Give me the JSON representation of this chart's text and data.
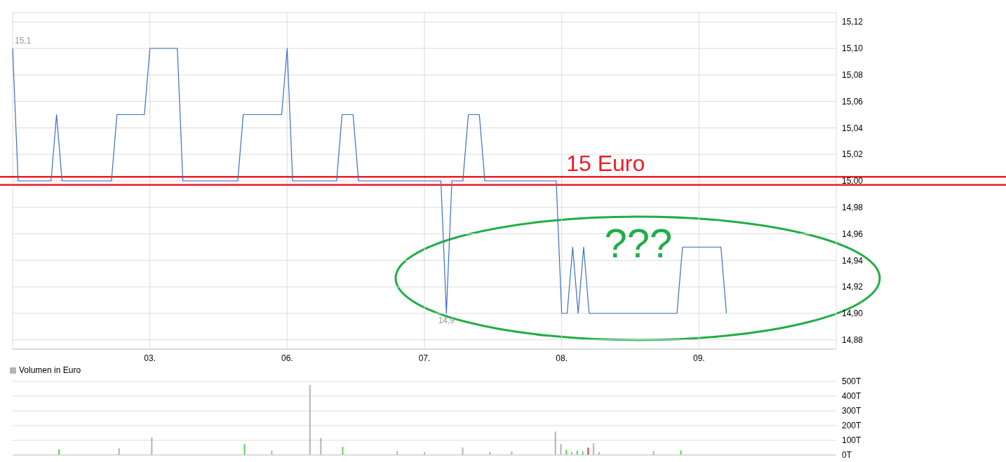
{
  "chart_data": [
    {
      "type": "line",
      "categories": [
        null,
        null,
        null,
        null,
        null,
        null,
        null,
        null,
        null,
        null,
        null,
        null,
        null,
        null,
        null,
        null,
        null,
        null,
        null,
        null,
        null,
        null,
        null,
        null,
        null,
        "03.",
        null,
        null,
        null,
        null,
        null,
        null,
        null,
        null,
        null,
        null,
        null,
        null,
        null,
        null,
        null,
        null,
        null,
        null,
        null,
        null,
        null,
        null,
        null,
        null,
        "06.",
        null,
        null,
        null,
        null,
        null,
        null,
        null,
        null,
        null,
        null,
        null,
        null,
        null,
        null,
        null,
        null,
        null,
        null,
        null,
        null,
        null,
        null,
        null,
        null,
        "07.",
        null,
        null,
        null,
        null,
        null,
        null,
        null,
        null,
        null,
        null,
        null,
        null,
        null,
        null,
        null,
        null,
        null,
        null,
        null,
        null,
        null,
        null,
        null,
        null,
        "08.",
        null,
        null,
        null,
        null,
        null,
        null,
        null,
        null,
        null,
        null,
        null,
        null,
        null,
        null,
        null,
        null,
        null,
        null,
        null,
        null,
        null,
        null,
        null,
        null,
        "09.",
        null,
        null,
        null,
        null,
        null,
        null,
        null,
        null,
        null,
        null,
        null,
        null,
        null,
        null,
        null,
        null,
        null,
        null,
        null,
        null,
        null,
        null,
        null,
        null,
        null
      ],
      "series": [
        {
          "color": "#3a6fc6",
          "values": [
            15.1,
            15,
            15,
            15,
            15,
            15,
            15,
            15,
            15.05,
            15,
            15,
            15,
            15,
            15,
            15,
            15,
            15,
            15,
            15,
            15.05,
            15.05,
            15.05,
            15.05,
            15.05,
            15.05,
            15.1,
            15.1,
            15.1,
            15.1,
            15.1,
            15.1,
            15,
            15,
            15,
            15,
            15,
            15,
            15,
            15,
            15,
            15,
            15,
            15.05,
            15.05,
            15.05,
            15.05,
            15.05,
            15.05,
            15.05,
            15.05,
            15.1,
            15,
            15,
            15,
            15,
            15,
            15,
            15,
            15,
            15,
            15.05,
            15.05,
            15.05,
            15,
            15,
            15,
            15,
            15,
            15,
            15,
            15,
            15,
            15,
            15,
            15,
            15,
            15,
            15,
            15,
            14.9,
            15,
            15,
            15,
            15.05,
            15.05,
            15.05,
            15,
            15,
            15,
            15,
            15,
            15,
            15,
            15,
            15,
            15,
            15,
            15,
            15,
            15,
            14.9,
            14.9,
            14.95,
            14.9,
            14.95,
            14.9,
            14.9,
            14.9,
            14.9,
            14.9,
            14.9,
            14.9,
            14.9,
            14.9,
            14.9,
            14.9,
            14.9,
            14.9,
            14.9,
            14.9,
            14.9,
            14.9,
            14.95,
            14.95,
            14.95,
            14.95,
            14.95,
            14.95,
            14.95,
            14.95,
            14.9,
            null,
            null,
            null,
            null,
            null,
            null,
            null,
            null,
            null,
            null,
            null,
            null,
            null,
            null,
            null,
            null,
            null,
            null,
            null,
            null
          ]
        }
      ],
      "ylim": [
        14.873,
        15.127
      ],
      "yticks": [
        {
          "value": 14.88,
          "label": "14,88"
        },
        {
          "value": 14.9,
          "label": "14,90"
        },
        {
          "value": 14.92,
          "label": "14,92"
        },
        {
          "value": 14.94,
          "label": "14,94"
        },
        {
          "value": 14.96,
          "label": "14,96"
        },
        {
          "value": 14.98,
          "label": "14,98"
        },
        {
          "value": 15.0,
          "label": "15,00"
        },
        {
          "value": 15.02,
          "label": "15,02"
        },
        {
          "value": 15.04,
          "label": "15,04"
        },
        {
          "value": 15.06,
          "label": "15,06"
        },
        {
          "value": 15.08,
          "label": "15,08"
        },
        {
          "value": 15.1,
          "label": "15,10"
        },
        {
          "value": 15.12,
          "label": "15,12"
        }
      ],
      "ref_lines": [
        {
          "axis": "y",
          "value": 15.003,
          "label": "15 Euro",
          "color": "#ee1c25"
        },
        {
          "axis": "y",
          "value": 14.997,
          "color": "#ee1c25"
        }
      ],
      "annotations": [
        "15,1",
        {
          "text": "14,9",
          "y": 14.9
        },
        "???"
      ],
      "grid": true,
      "marker": "none",
      "line_style": "solid"
    },
    {
      "type": "bar",
      "categories": [
        null,
        null,
        null,
        null,
        null,
        null,
        null,
        null,
        null,
        null,
        null,
        null,
        null,
        null,
        null,
        null,
        null,
        null,
        null,
        null,
        null,
        null,
        null,
        null,
        null,
        null,
        null,
        null,
        null,
        null,
        null,
        null,
        null,
        null,
        null,
        null,
        null,
        null,
        null,
        null,
        null,
        null,
        null,
        null,
        null,
        null,
        null,
        null,
        null,
        null,
        null,
        null,
        null,
        null,
        null,
        null,
        null,
        null,
        null,
        null,
        null,
        null,
        null,
        null,
        null,
        null,
        null,
        null,
        null,
        null,
        null,
        null,
        null,
        null,
        null,
        null,
        null,
        null,
        null,
        null,
        null,
        null,
        null,
        null,
        null,
        null,
        null,
        null,
        null,
        null,
        null,
        null,
        null,
        null,
        null,
        null,
        null,
        null,
        null,
        null,
        null,
        null,
        null,
        null,
        null,
        null,
        null,
        null,
        null,
        null,
        null,
        null,
        null,
        null,
        null,
        null,
        null,
        null,
        null,
        null,
        null,
        null,
        null,
        null,
        null,
        null,
        null,
        null,
        null,
        null,
        null,
        null,
        null,
        null,
        null,
        null,
        null,
        null,
        null,
        null,
        null,
        null,
        null,
        null,
        null,
        null,
        null,
        null,
        null,
        null,
        null
      ],
      "series": [
        {
          "name": "Volumen in Euro",
          "color": "#b3b3b3",
          "values": [
            null,
            null,
            null,
            null,
            null,
            null,
            null,
            null,
            40,
            null,
            null,
            null,
            null,
            null,
            null,
            null,
            null,
            null,
            null,
            45,
            null,
            null,
            null,
            null,
            null,
            120,
            null,
            null,
            null,
            null,
            null,
            null,
            null,
            null,
            null,
            null,
            null,
            null,
            null,
            null,
            null,
            null,
            75,
            null,
            null,
            null,
            null,
            30,
            null,
            null,
            null,
            null,
            null,
            null,
            475,
            null,
            115,
            null,
            null,
            null,
            55,
            null,
            null,
            null,
            null,
            null,
            null,
            null,
            null,
            null,
            25,
            null,
            null,
            null,
            null,
            20,
            null,
            null,
            null,
            null,
            null,
            null,
            50,
            null,
            null,
            null,
            null,
            20,
            null,
            null,
            null,
            25,
            null,
            null,
            null,
            null,
            null,
            null,
            null,
            160,
            75,
            35,
            20,
            30,
            25,
            50,
            80,
            20,
            null,
            null,
            null,
            null,
            null,
            null,
            null,
            null,
            null,
            25,
            null,
            null,
            null,
            null,
            30,
            null,
            null,
            null,
            null,
            null,
            null,
            null,
            null,
            null,
            null,
            null,
            null,
            null,
            null,
            null,
            null,
            null,
            null,
            null,
            null,
            null,
            null,
            null,
            null,
            null,
            null,
            null,
            null
          ],
          "colors": [
            "#d9344a",
            "#b3b3b3",
            "#b3b3b3",
            "#b3b3b3",
            "#b3b3b3",
            "#b3b3b3",
            "#b3b3b3",
            "#b3b3b3",
            "#4cd94c",
            "#b3b3b3",
            "#b3b3b3",
            "#b3b3b3",
            "#b3b3b3",
            "#b3b3b3",
            "#b3b3b3",
            "#b3b3b3",
            "#b3b3b3",
            "#b3b3b3",
            "#b3b3b3",
            "#b3b3b3",
            "#b3b3b3",
            "#b3b3b3",
            "#b3b3b3",
            "#b3b3b3",
            "#b3b3b3",
            "#b3b3b3",
            "#b3b3b3",
            "#b3b3b3",
            "#b3b3b3",
            "#b3b3b3",
            "#b3b3b3",
            "#b3b3b3",
            "#b3b3b3",
            "#b3b3b3",
            "#b3b3b3",
            "#b3b3b3",
            "#b3b3b3",
            "#b3b3b3",
            "#b3b3b3",
            "#b3b3b3",
            "#b3b3b3",
            "#b3b3b3",
            "#4cd94c",
            "#b3b3b3",
            "#b3b3b3",
            "#b3b3b3",
            "#b3b3b3",
            "#b3b3b3",
            "#b3b3b3",
            "#b3b3b3",
            "#b3b3b3",
            "#b3b3b3",
            "#b3b3b3",
            "#b3b3b3",
            "#b3b3b3",
            "#b3b3b3",
            "#b3b3b3",
            "#b3b3b3",
            "#b3b3b3",
            "#b3b3b3",
            "#4cd94c",
            "#b3b3b3",
            "#b3b3b3",
            "#b3b3b3",
            "#b3b3b3",
            "#b3b3b3",
            "#b3b3b3",
            "#b3b3b3",
            "#b3b3b3",
            "#b3b3b3",
            "#b3b3b3",
            "#b3b3b3",
            "#b3b3b3",
            "#b3b3b3",
            "#b3b3b3",
            "#b3b3b3",
            "#b3b3b3",
            "#b3b3b3",
            "#b3b3b3",
            "#b3b3b3",
            "#b3b3b3",
            "#b3b3b3",
            "#b3b3b3",
            "#b3b3b3",
            "#b3b3b3",
            "#b3b3b3",
            "#b3b3b3",
            "#b3b3b3",
            "#b3b3b3",
            "#b3b3b3",
            "#b3b3b3",
            "#b3b3b3",
            "#b3b3b3",
            "#b3b3b3",
            "#b3b3b3",
            "#b3b3b3",
            "#b3b3b3",
            "#b3b3b3",
            "#b3b3b3",
            "#b3b3b3",
            "#b3b3b3",
            "#4cd94c",
            "#b3b3b3",
            "#4cd94c",
            "#4cd94c",
            "#d9344a",
            "#b3b3b3",
            "#b3b3b3",
            "#b3b3b3",
            "#b3b3b3",
            "#b3b3b3",
            "#b3b3b3",
            "#b3b3b3",
            "#b3b3b3",
            "#b3b3b3",
            "#b3b3b3",
            "#b3b3b3",
            "#b3b3b3",
            "#b3b3b3",
            "#b3b3b3",
            "#b3b3b3",
            "#b3b3b3",
            "#4cd94c",
            "#b3b3b3",
            "#b3b3b3",
            "#b3b3b3",
            "#b3b3b3",
            "#b3b3b3",
            "#b3b3b3",
            "#b3b3b3",
            "#d9344a",
            "#b3b3b3",
            "#b3b3b3",
            "#b3b3b3",
            "#b3b3b3",
            "#b3b3b3",
            "#b3b3b3",
            "#b3b3b3",
            "#b3b3b3",
            "#b3b3b3",
            "#b3b3b3",
            "#b3b3b3",
            "#b3b3b3",
            "#b3b3b3",
            "#b3b3b3",
            "#b3b3b3",
            "#b3b3b3",
            "#b3b3b3",
            "#b3b3b3",
            "#b3b3b3",
            "#b3b3b3"
          ]
        }
      ],
      "ylim": [
        0,
        500
      ],
      "yticks": [
        {
          "value": 0,
          "label": "0T"
        },
        {
          "value": 100,
          "label": "100T"
        },
        {
          "value": 200,
          "label": "200T"
        },
        {
          "value": 300,
          "label": "300T"
        },
        {
          "value": 400,
          "label": "400T"
        },
        {
          "value": 500,
          "label": "500T"
        }
      ],
      "grid": "y",
      "legend": "top left"
    }
  ]
}
